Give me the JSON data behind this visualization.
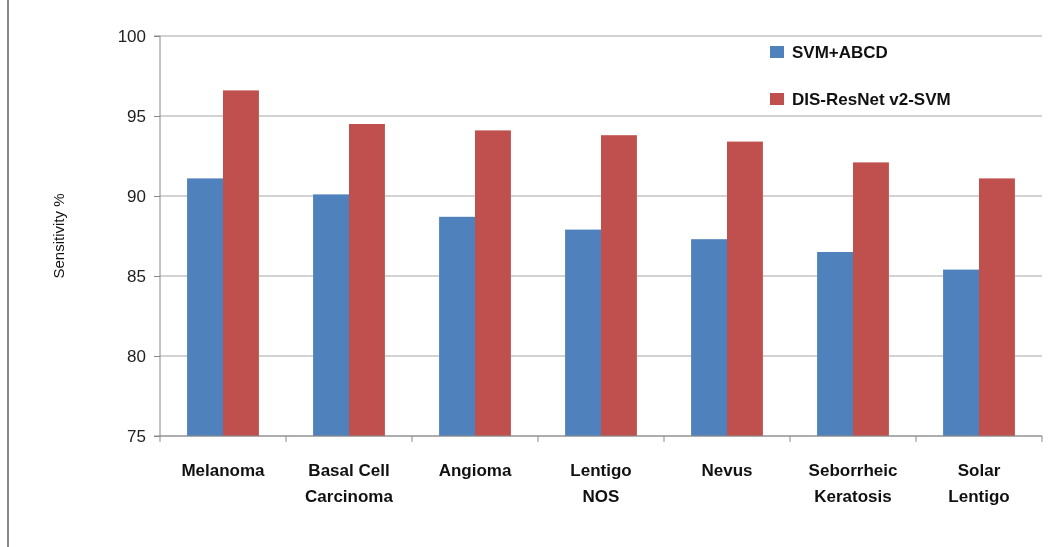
{
  "chart_data": {
    "type": "bar",
    "ylabel": "Sensitivity %",
    "categories": [
      "Melanoma",
      "Basal Cell Carcinoma",
      "Angioma",
      "Lentigo NOS",
      "Nevus",
      "Seborrheic Keratosis",
      "Solar Lentigo"
    ],
    "series": [
      {
        "name": "SVM+ABCD",
        "color": "#4f81bd",
        "values": [
          91.1,
          90.1,
          88.7,
          87.9,
          87.3,
          86.5,
          85.4
        ]
      },
      {
        "name": "DIS-ResNet v2-SVM",
        "color": "#c0504d",
        "values": [
          96.6,
          94.5,
          94.1,
          93.8,
          93.4,
          92.1,
          91.1
        ]
      }
    ],
    "ylim": [
      75,
      100
    ],
    "yticks": [
      75,
      80,
      85,
      90,
      95,
      100
    ],
    "grid": "y",
    "legend": "top right"
  }
}
